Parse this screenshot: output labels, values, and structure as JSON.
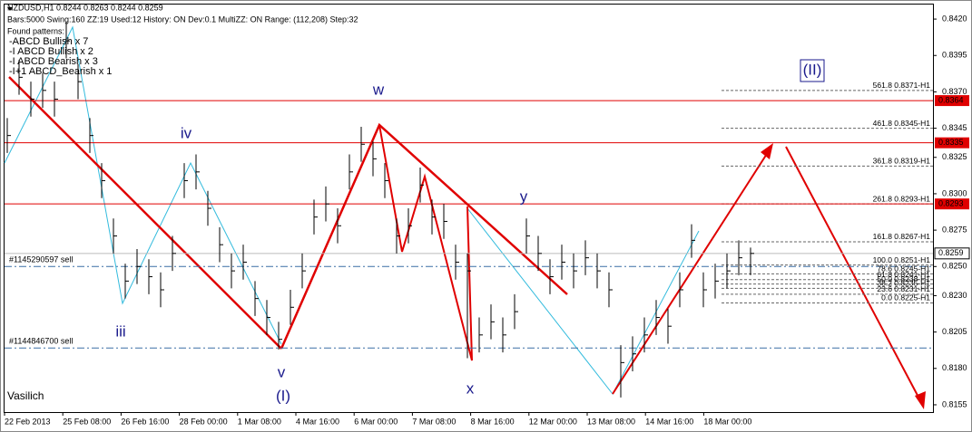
{
  "chart_data": {
    "type": "hlc",
    "title": "NZDUSD,H1  0.8244 0.8263 0.8244 0.8259",
    "info": "Bars:5000  Swing:160  ZZ:19  Used:12  History: ON Dev:0.1  MultiZZ: ON  Range: (112,208)  Step:32",
    "patterns_title": "Found patterns:",
    "patterns": [
      {
        "text": "-ABCD Bullish x 7",
        "color": "#22bb22"
      },
      {
        "text": "-I ABCD Bullish x 2",
        "color": "#22bb22"
      },
      {
        "text": "-I ABCD Bearish x 3",
        "color": "#dd2222"
      },
      {
        "text": "-I+1 ABCD_Bearish x 1",
        "color": "#dd2222"
      }
    ],
    "author": "Vasilich",
    "color": "#000000",
    "xlabels": [
      "22 Feb 2013",
      "25 Feb 08:00",
      "26 Feb 16:00",
      "28 Feb 00:00",
      "1 Mar 08:00",
      "4 Mar 16:00",
      "6 Mar 00:00",
      "7 Mar 08:00",
      "8 Mar 16:00",
      "12 Mar 00:00",
      "13 Mar 08:00",
      "14 Mar 16:00",
      "18 Mar 00:00"
    ],
    "ylim": [
      0.815,
      0.843
    ],
    "yticks": [
      {
        "value": 0.842,
        "label": "0.8420"
      },
      0.8395,
      {
        "value": 0.837,
        "label": "0.8370"
      },
      0.8345,
      0.8325,
      {
        "value": 0.83,
        "label": "0.8300"
      },
      0.8275,
      {
        "value": 0.825,
        "label": "0.8250"
      },
      {
        "value": 0.823,
        "label": "0.8230"
      },
      0.8205,
      {
        "value": 0.818,
        "label": "0.8180"
      },
      0.8155
    ],
    "high": [
      0.8352,
      0.8392,
      0.8377,
      0.8383,
      0.8377,
      0.8418,
      0.8389,
      0.8352,
      0.8321,
      0.8283,
      0.8252,
      0.8262,
      0.8255,
      0.8246,
      0.8271,
      0.8321,
      0.8327,
      0.8302,
      0.8277,
      0.8259,
      0.8265,
      0.824,
      0.8227,
      0.8212,
      0.8234,
      0.8259,
      0.8296,
      0.8305,
      0.829,
      0.8327,
      0.8346,
      0.8336,
      0.8321,
      0.8283,
      0.829,
      0.8318,
      0.8296,
      0.8293,
      0.8265,
      0.8259,
      0.8215,
      0.8224,
      0.8215,
      0.8231,
      0.8283,
      0.8271,
      0.8255,
      0.8265,
      0.8259,
      0.8268,
      0.8259,
      0.8246,
      0.8196,
      0.8202,
      0.8215,
      0.8227,
      0.8221,
      0.8246,
      0.8279,
      0.8246,
      0.8252,
      0.8259,
      0.8268,
      0.8263
    ],
    "low": [
      0.8328,
      0.8368,
      0.8353,
      0.8359,
      0.8353,
      0.8393,
      0.8365,
      0.8328,
      0.8297,
      0.8259,
      0.8228,
      0.8238,
      0.8231,
      0.8222,
      0.8247,
      0.8297,
      0.8303,
      0.8278,
      0.8253,
      0.8235,
      0.8241,
      0.8216,
      0.8203,
      0.8193,
      0.821,
      0.8235,
      0.8272,
      0.8281,
      0.8266,
      0.8303,
      0.8322,
      0.8312,
      0.8297,
      0.8259,
      0.8266,
      0.8294,
      0.8272,
      0.8269,
      0.8241,
      0.8187,
      0.8191,
      0.82,
      0.8191,
      0.8207,
      0.8259,
      0.8247,
      0.8231,
      0.8241,
      0.8235,
      0.8244,
      0.8235,
      0.8222,
      0.816,
      0.8178,
      0.8191,
      0.8203,
      0.8197,
      0.8222,
      0.8256,
      0.8222,
      0.8228,
      0.8235,
      0.8244,
      0.8244
    ],
    "close": [
      0.834,
      0.838,
      0.8365,
      0.8371,
      0.8365,
      0.8405,
      0.8377,
      0.834,
      0.8309,
      0.8271,
      0.824,
      0.825,
      0.8243,
      0.8234,
      0.8259,
      0.8309,
      0.8315,
      0.829,
      0.8265,
      0.8247,
      0.8253,
      0.8228,
      0.8215,
      0.82,
      0.8222,
      0.8247,
      0.8284,
      0.8293,
      0.8278,
      0.8315,
      0.8334,
      0.8324,
      0.8309,
      0.8271,
      0.8278,
      0.8306,
      0.8284,
      0.8281,
      0.8253,
      0.8247,
      0.8203,
      0.8212,
      0.8203,
      0.8219,
      0.8271,
      0.8259,
      0.8243,
      0.8253,
      0.8247,
      0.8256,
      0.8247,
      0.8234,
      0.8184,
      0.819,
      0.8203,
      0.8215,
      0.8209,
      0.8234,
      0.8268,
      0.8234,
      0.824,
      0.8247,
      0.8256,
      0.8259
    ],
    "levels": [
      0.8364,
      0.8335,
      0.8293
    ],
    "level_color": "#e00000",
    "last_price": 0.8259,
    "orders": [
      {
        "label": "#1145290597 sell",
        "value": 0.825
      },
      {
        "label": "#1144846700 sell",
        "value": 0.8194
      }
    ],
    "fib_levels": [
      {
        "label": "561.8 0.8371-H1",
        "value": 0.8371
      },
      {
        "label": "461.8 0.8345-H1",
        "value": 0.8345
      },
      {
        "label": "361.8 0.8319-H1",
        "value": 0.8319
      },
      {
        "label": "261.8 0.8293-H1",
        "value": 0.8293
      },
      {
        "label": "161.8 0.8267-H1",
        "value": 0.8267
      },
      {
        "label": "100.0 0.8251-H1",
        "value": 0.8251
      },
      {
        "label": "78.6 0.8245-H1",
        "value": 0.8245
      },
      {
        "label": "61.8 0.8241-H1",
        "value": 0.8241
      },
      {
        "label": "50.0 0.8238-H1",
        "value": 0.8238
      },
      {
        "label": "38.2 0.8235-H1",
        "value": 0.8235
      },
      {
        "label": "23.6 0.8231-H1",
        "value": 0.8231
      },
      {
        "label": "0.0 0.8225-H1",
        "value": 0.8225
      }
    ],
    "wave_labels": [
      "w",
      "iv",
      "iii",
      "v",
      "(I)",
      "x",
      "y",
      "(II)"
    ]
  }
}
